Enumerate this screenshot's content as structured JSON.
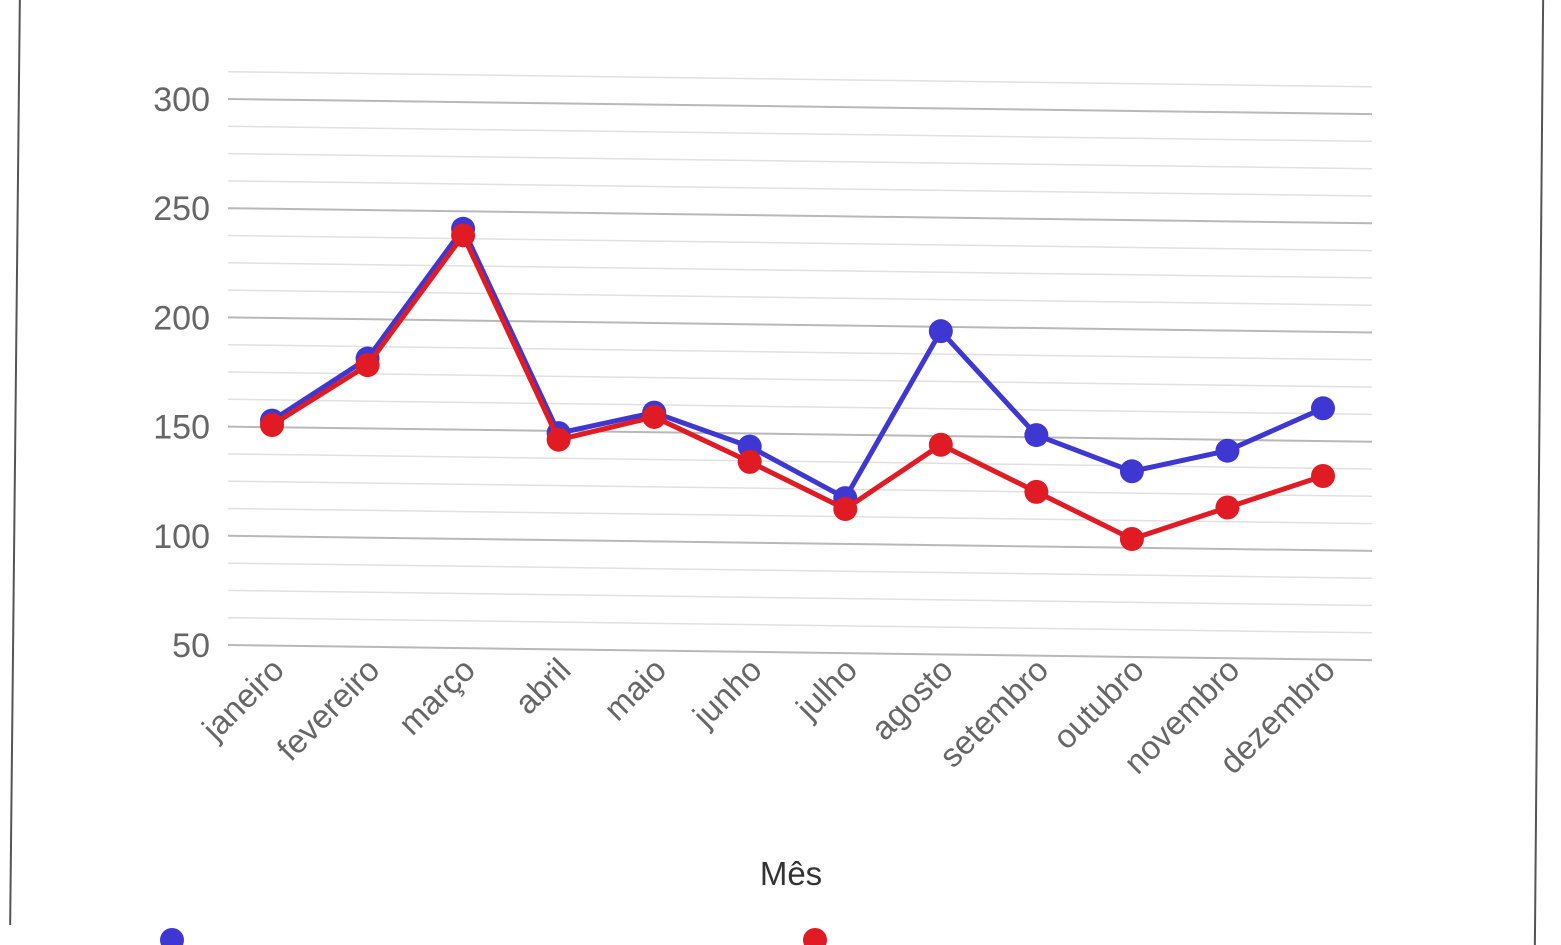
{
  "chart_data": {
    "type": "line",
    "xlabel": "Mês",
    "ylabel": "",
    "ylim": [
      50,
      320
    ],
    "yticks": [
      50,
      100,
      150,
      200,
      250,
      300
    ],
    "minor_grid": true,
    "legend_position": "bottom",
    "categories": [
      "janeiro",
      "fevereiro",
      "março",
      "abril",
      "maio",
      "junho",
      "julho",
      "agosto",
      "setembro",
      "outubro",
      "novembro",
      "dezembro"
    ],
    "series": [
      {
        "color": "#3e37d1",
        "values": [
          153,
          182,
          242,
          149,
          159,
          144,
          121,
          198,
          151,
          135,
          145,
          165
        ]
      },
      {
        "color": "#e01b24",
        "values": [
          151,
          179,
          239,
          146,
          157,
          137,
          116,
          146,
          125,
          104,
          119,
          134
        ]
      }
    ]
  }
}
